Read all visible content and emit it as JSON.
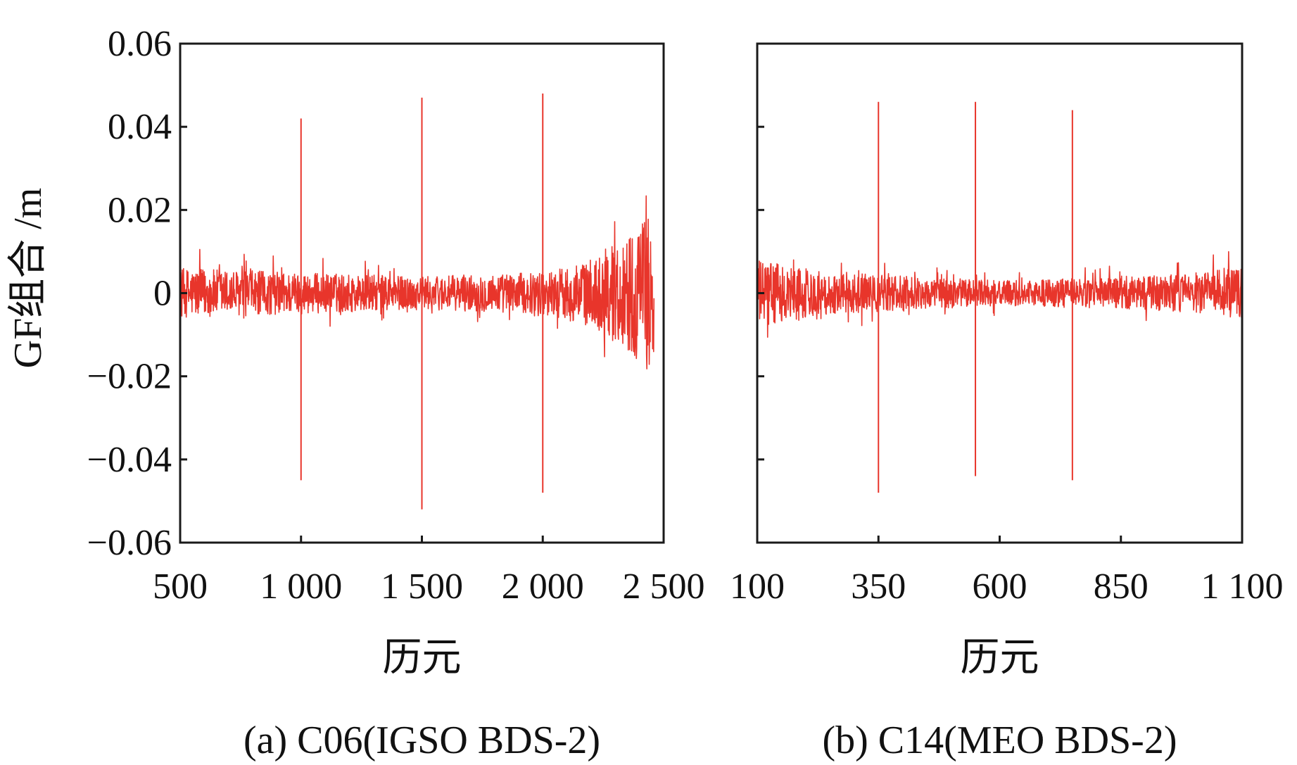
{
  "colors": {
    "series": "#e8352b",
    "axis": "#1a1a1a",
    "text": "#111111"
  },
  "chart_data": [
    {
      "type": "line",
      "panel": "a",
      "caption": "(a) C06(IGSO BDS-2)",
      "xlabel": "历元",
      "ylabel": "GF组合 /m",
      "xlim": [
        500,
        2500
      ],
      "ylim": [
        -0.06,
        0.06
      ],
      "x_ticks": [
        500,
        1000,
        1500,
        2000,
        2500
      ],
      "x_tick_labels": [
        "500",
        "1 000",
        "1 500",
        "2 000",
        "2 500"
      ],
      "y_ticks": [
        0.06,
        0.04,
        0.02,
        0,
        -0.02,
        -0.04,
        -0.06
      ],
      "y_tick_labels": [
        "0.06",
        "0.04",
        "0.02",
        "0",
        "−0.02",
        "−0.04",
        "−0.06"
      ],
      "series": [
        {
          "name": "GF combination",
          "x_range": [
            500,
            2460
          ],
          "noise_envelope": [
            {
              "x": 500,
              "amp": 0.006
            },
            {
              "x": 1000,
              "amp": 0.005
            },
            {
              "x": 1500,
              "amp": 0.004
            },
            {
              "x": 2000,
              "amp": 0.005
            },
            {
              "x": 2200,
              "amp": 0.008
            },
            {
              "x": 2350,
              "amp": 0.014
            },
            {
              "x": 2460,
              "amp": 0.02
            }
          ],
          "cycle_slips": [
            {
              "epoch": 1000,
              "max": 0.042,
              "min": -0.045
            },
            {
              "epoch": 1500,
              "max": 0.047,
              "min": -0.052
            },
            {
              "epoch": 2000,
              "max": 0.048,
              "min": -0.048
            }
          ]
        }
      ]
    },
    {
      "type": "line",
      "panel": "b",
      "caption": "(b) C14(MEO BDS-2)",
      "xlabel": "历元",
      "ylabel": "",
      "xlim": [
        100,
        1100
      ],
      "ylim": [
        -0.06,
        0.06
      ],
      "x_ticks": [
        100,
        350,
        600,
        850,
        1100
      ],
      "x_tick_labels": [
        "100",
        "350",
        "600",
        "850",
        "1 100"
      ],
      "y_ticks": [
        0.06,
        0.04,
        0.02,
        0,
        -0.02,
        -0.04,
        -0.06
      ],
      "y_tick_labels": [],
      "series": [
        {
          "name": "GF combination",
          "x_range": [
            100,
            1100
          ],
          "noise_envelope": [
            {
              "x": 100,
              "amp": 0.008
            },
            {
              "x": 250,
              "amp": 0.005
            },
            {
              "x": 600,
              "amp": 0.003
            },
            {
              "x": 900,
              "amp": 0.004
            },
            {
              "x": 1100,
              "amp": 0.006
            }
          ],
          "cycle_slips": [
            {
              "epoch": 350,
              "max": 0.046,
              "min": -0.048
            },
            {
              "epoch": 550,
              "max": 0.046,
              "min": -0.044
            },
            {
              "epoch": 750,
              "max": 0.044,
              "min": -0.045
            }
          ]
        }
      ]
    }
  ]
}
